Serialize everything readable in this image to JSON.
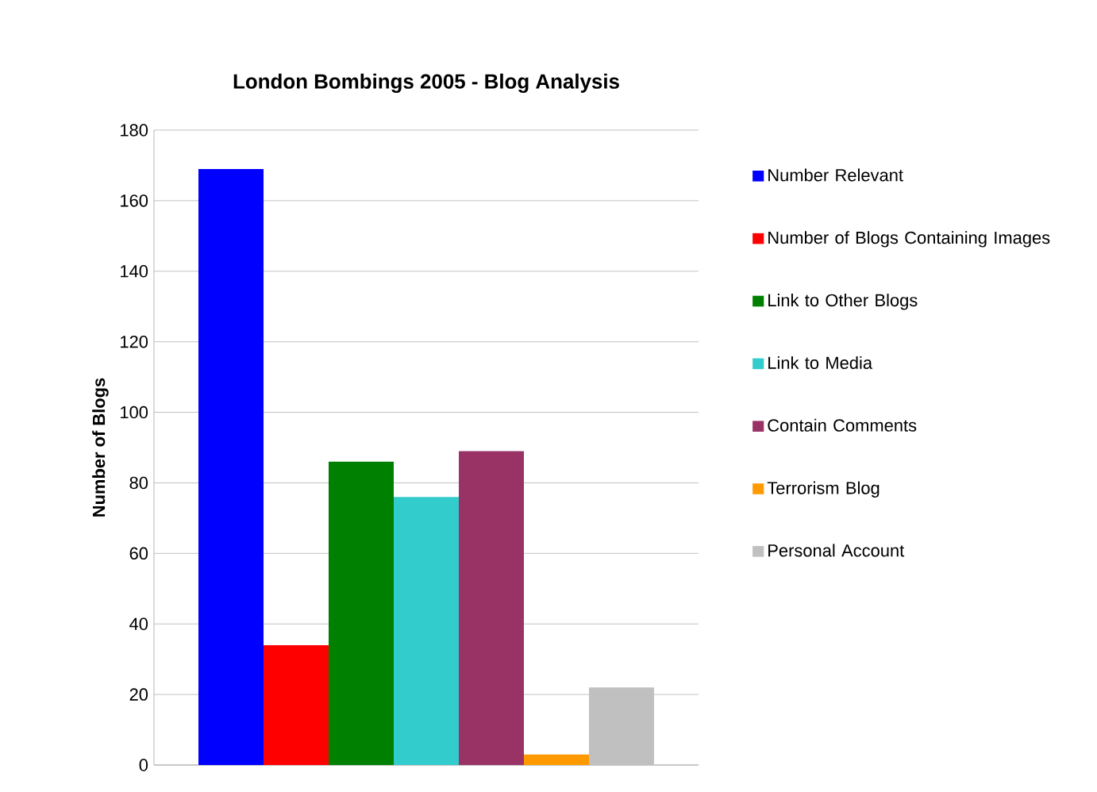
{
  "chart_data": {
    "type": "bar",
    "title": "London Bombings 2005 - Blog Analysis",
    "ylabel": "Number of Blogs",
    "categories": [
      null
    ],
    "series": [
      {
        "name": "Number Relevant",
        "color": "#0000ff",
        "values": [
          169
        ]
      },
      {
        "name": "Number of Blogs Containing Images",
        "color": "#ff0000",
        "values": [
          34
        ]
      },
      {
        "name": "Link to Other Blogs",
        "color": "#008000",
        "values": [
          86
        ]
      },
      {
        "name": "Link to Media",
        "color": "#33cccc",
        "values": [
          76
        ]
      },
      {
        "name": "Contain Comments",
        "color": "#993366",
        "values": [
          89
        ]
      },
      {
        "name": "Terrorism Blog",
        "color": "#ff9900",
        "values": [
          3
        ]
      },
      {
        "name": "Personal Account",
        "color": "#c0c0c0",
        "values": [
          22
        ]
      }
    ],
    "ylim": [
      0,
      180
    ],
    "yticks": [
      0,
      20,
      40,
      60,
      80,
      100,
      120,
      140,
      160,
      180
    ],
    "grid": "y",
    "legend": "right",
    "tick_labels": "y"
  }
}
